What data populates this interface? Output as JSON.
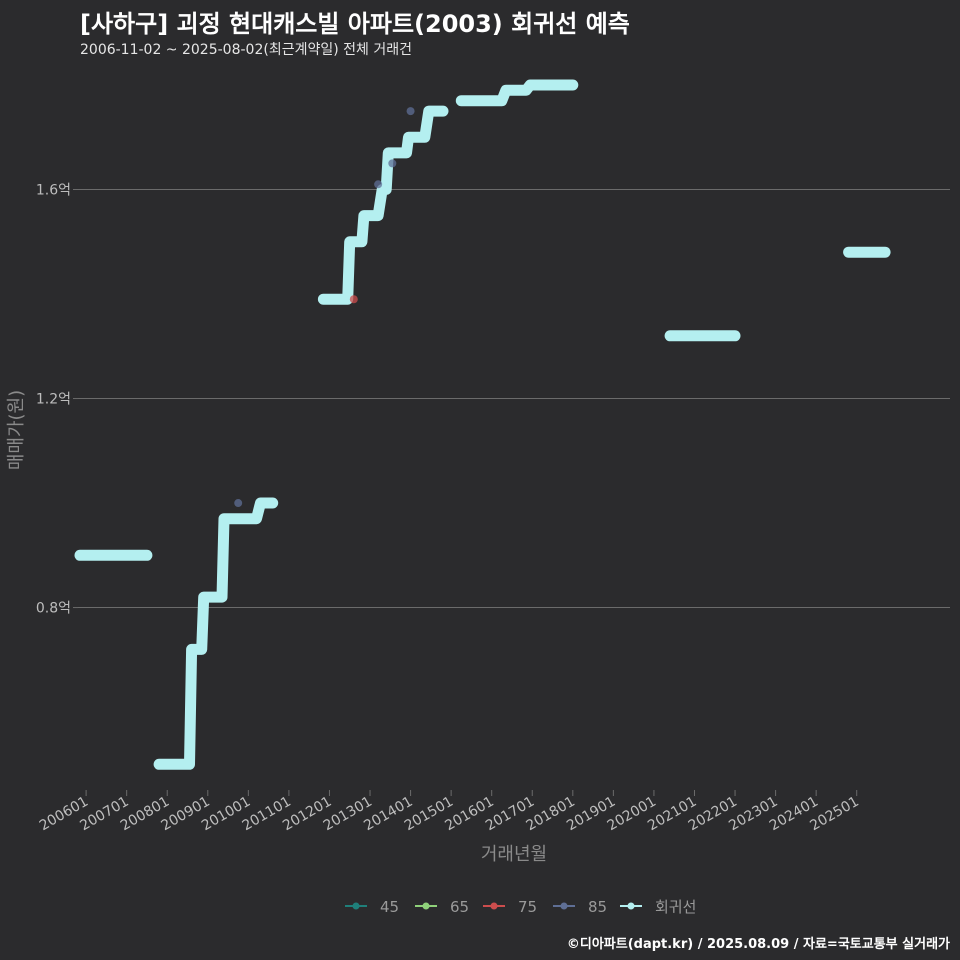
{
  "header": {
    "title": "[사하구] 괴정 현대캐스빌 아파트(2003) 회귀선 예측",
    "subtitle": "2006-11-02 ~ 2025-08-02(최근계약일) 전체 거래건"
  },
  "caption": "©디아파트(dapt.kr) / 2025.08.09 / 자료=국토교통부 실거래가",
  "chart_data": {
    "type": "line",
    "xlabel": "거래년월",
    "ylabel": "매매가(원)",
    "x_range": [
      2005.8,
      2027.3
    ],
    "ylim": [
      0.47,
      1.8
    ],
    "yticks": [
      {
        "value": 0.8,
        "label": "0.8억"
      },
      {
        "value": 1.2,
        "label": "1.2억"
      },
      {
        "value": 1.6,
        "label": "1.6억"
      }
    ],
    "xticks": [
      {
        "value": 2006,
        "label": "200601"
      },
      {
        "value": 2007,
        "label": "200701"
      },
      {
        "value": 2008,
        "label": "200801"
      },
      {
        "value": 2009,
        "label": "200901"
      },
      {
        "value": 2010,
        "label": "201001"
      },
      {
        "value": 2011,
        "label": "201101"
      },
      {
        "value": 2012,
        "label": "201201"
      },
      {
        "value": 2013,
        "label": "201301"
      },
      {
        "value": 2014,
        "label": "201401"
      },
      {
        "value": 2015,
        "label": "201501"
      },
      {
        "value": 2016,
        "label": "201601"
      },
      {
        "value": 2017,
        "label": "201701"
      },
      {
        "value": 2018,
        "label": "201801"
      },
      {
        "value": 2019,
        "label": "201901"
      },
      {
        "value": 2020,
        "label": "202001"
      },
      {
        "value": 2021,
        "label": "202101"
      },
      {
        "value": 2022,
        "label": "202201"
      },
      {
        "value": 2023,
        "label": "202301"
      },
      {
        "value": 2024,
        "label": "202401"
      },
      {
        "value": 2025,
        "label": "202501"
      }
    ],
    "legend": [
      {
        "name": "45",
        "color": "#1f7f7a"
      },
      {
        "name": "65",
        "color": "#8fd17a"
      },
      {
        "name": "75",
        "color": "#cc4d4d"
      },
      {
        "name": "85",
        "color": "#5f6f95"
      },
      {
        "name": "회귀선",
        "color": "#b4eff0"
      }
    ],
    "regression_segments": [
      [
        [
          2005.85,
          0.9
        ],
        [
          2007.5,
          0.9
        ]
      ],
      [
        [
          2007.8,
          0.5
        ],
        [
          2008.55,
          0.5
        ],
        [
          2008.6,
          0.72
        ],
        [
          2008.85,
          0.72
        ],
        [
          2008.9,
          0.82
        ],
        [
          2009.35,
          0.82
        ],
        [
          2009.4,
          0.97
        ],
        [
          2010.2,
          0.97
        ],
        [
          2010.3,
          1.0
        ],
        [
          2010.6,
          1.0
        ]
      ],
      [
        [
          2011.85,
          1.39
        ],
        [
          2012.45,
          1.39
        ],
        [
          2012.5,
          1.5
        ],
        [
          2012.8,
          1.5
        ],
        [
          2012.85,
          1.55
        ],
        [
          2013.2,
          1.55
        ],
        [
          2013.3,
          1.6
        ],
        [
          2013.4,
          1.6
        ],
        [
          2013.45,
          1.67
        ],
        [
          2013.9,
          1.67
        ],
        [
          2013.95,
          1.7
        ],
        [
          2014.35,
          1.7
        ],
        [
          2014.45,
          1.75
        ],
        [
          2014.8,
          1.75
        ]
      ],
      [
        [
          2015.25,
          1.77
        ],
        [
          2016.25,
          1.77
        ],
        [
          2016.35,
          1.79
        ],
        [
          2016.85,
          1.79
        ],
        [
          2016.95,
          1.8
        ],
        [
          2018.0,
          1.8
        ]
      ],
      [
        [
          2020.4,
          1.32
        ],
        [
          2022.0,
          1.32
        ]
      ],
      [
        [
          2024.8,
          1.48
        ],
        [
          2025.7,
          1.48
        ]
      ]
    ],
    "points": [
      {
        "series": "85",
        "x": 2009.75,
        "y": 1.0
      },
      {
        "series": "75",
        "x": 2012.6,
        "y": 1.39
      },
      {
        "series": "85",
        "x": 2013.2,
        "y": 1.61
      },
      {
        "series": "85",
        "x": 2013.55,
        "y": 1.65
      },
      {
        "series": "85",
        "x": 2014.0,
        "y": 1.75
      }
    ]
  }
}
